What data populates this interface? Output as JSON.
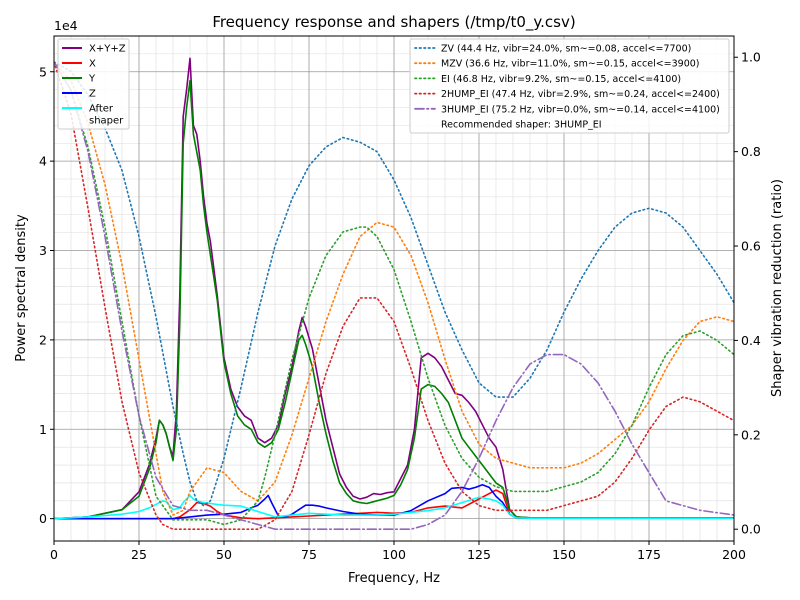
{
  "chart_data": {
    "type": "line",
    "title": "Frequency response and shapers (/tmp/t0_y.csv)",
    "xlabel": "Frequency, Hz",
    "ylabel": "Power spectral density",
    "y2label": "Shaper vibration reduction (ratio)",
    "y_offset_label": "1e4",
    "xlim": [
      0,
      200
    ],
    "ylim": [
      -2500,
      54000
    ],
    "y2lim": [
      -0.025,
      1.045
    ],
    "x_ticks": [
      0,
      25,
      50,
      75,
      100,
      125,
      150,
      175,
      200
    ],
    "y_ticks": [
      0,
      10000,
      20000,
      30000,
      40000,
      50000
    ],
    "y_tick_labels": [
      "0",
      "1",
      "2",
      "3",
      "4",
      "5"
    ],
    "y2_ticks": [
      0,
      0.2,
      0.4,
      0.6,
      0.8,
      1.0
    ],
    "y2_tick_labels": [
      "0.0",
      "0.2",
      "0.4",
      "0.6",
      "0.8",
      "1.0"
    ],
    "grid": true,
    "legend_left_position": "top-left",
    "legend_right_position": "top-right",
    "recommended_text": "Recommended shaper: 3HUMP_EI",
    "psd_series": [
      {
        "name": "X+Y+Z",
        "color": "#800080",
        "x": [
          0,
          10,
          20,
          25,
          28,
          30,
          31,
          32,
          33,
          34,
          35,
          36,
          37,
          38,
          39,
          40,
          41,
          42,
          43,
          44,
          45,
          46,
          47,
          48,
          50,
          52,
          54,
          56,
          58,
          60,
          62,
          64,
          66,
          68,
          70,
          72,
          73,
          74,
          76,
          78,
          80,
          82,
          84,
          86,
          88,
          90,
          92,
          94,
          96,
          98,
          100,
          102,
          104,
          106,
          108,
          110,
          112,
          114,
          116,
          118,
          120,
          122,
          124,
          126,
          128,
          130,
          132,
          134,
          136,
          140,
          150,
          160,
          170,
          180,
          190,
          200
        ],
        "y": [
          0,
          200,
          1000,
          3000,
          6000,
          9000,
          11000,
          10500,
          9500,
          8000,
          7000,
          12000,
          25000,
          45000,
          48000,
          51500,
          44000,
          43000,
          40000,
          36000,
          33000,
          31000,
          28000,
          25000,
          18000,
          14500,
          12500,
          11500,
          11000,
          9000,
          8500,
          9000,
          10500,
          14000,
          17000,
          21000,
          22500,
          21500,
          19000,
          15000,
          11000,
          8000,
          5000,
          3500,
          2500,
          2200,
          2400,
          2800,
          2700,
          2900,
          3000,
          4500,
          6000,
          10000,
          18000,
          18500,
          18000,
          17000,
          15500,
          14000,
          13800,
          13000,
          12000,
          10500,
          9000,
          8000,
          5500,
          1000,
          200,
          100,
          100,
          100,
          100,
          100,
          100,
          100
        ]
      },
      {
        "name": "X",
        "color": "#ff0000",
        "x": [
          0,
          30,
          35,
          37,
          40,
          42,
          44,
          46,
          48,
          50,
          55,
          60,
          65,
          70,
          75,
          80,
          85,
          90,
          95,
          100,
          105,
          110,
          115,
          120,
          125,
          128,
          130,
          132,
          134,
          136,
          140,
          150,
          160,
          170,
          180,
          190,
          200
        ],
        "y": [
          0,
          0,
          0,
          200,
          1000,
          1800,
          1700,
          1400,
          800,
          400,
          100,
          0,
          100,
          200,
          300,
          400,
          500,
          600,
          700,
          600,
          700,
          1200,
          1400,
          1200,
          2200,
          2800,
          3200,
          2800,
          500,
          100,
          50,
          50,
          50,
          50,
          50,
          50,
          50
        ]
      },
      {
        "name": "Y",
        "color": "#008000",
        "x": [
          0,
          10,
          20,
          25,
          28,
          30,
          31,
          32,
          33,
          34,
          35,
          36,
          37,
          38,
          39,
          40,
          41,
          42,
          43,
          44,
          45,
          46,
          47,
          48,
          50,
          52,
          54,
          56,
          58,
          60,
          62,
          64,
          66,
          68,
          70,
          72,
          73,
          74,
          76,
          78,
          80,
          82,
          84,
          86,
          88,
          90,
          92,
          94,
          96,
          98,
          100,
          102,
          104,
          106,
          108,
          110,
          112,
          114,
          116,
          118,
          120,
          122,
          124,
          126,
          128,
          130,
          132,
          134,
          136,
          140,
          150,
          160,
          170,
          180,
          190,
          200
        ],
        "y": [
          0,
          200,
          1000,
          2500,
          5500,
          8500,
          11000,
          10500,
          9500,
          8000,
          6500,
          10000,
          22000,
          42000,
          46000,
          49000,
          43000,
          41000,
          39000,
          35000,
          32000,
          29500,
          27000,
          24500,
          17500,
          14000,
          11500,
          10500,
          10000,
          8500,
          8000,
          8500,
          10000,
          13000,
          16500,
          20000,
          20500,
          19500,
          17000,
          13000,
          9500,
          6500,
          4000,
          2800,
          2000,
          1800,
          1700,
          1900,
          2100,
          2300,
          2600,
          3800,
          5500,
          9000,
          14500,
          15000,
          14800,
          14000,
          13000,
          11000,
          9000,
          8000,
          7000,
          6000,
          5000,
          4000,
          3500,
          1000,
          200,
          100,
          100,
          100,
          100,
          100,
          100,
          100
        ]
      },
      {
        "name": "Z",
        "color": "#0000ff",
        "x": [
          0,
          35,
          40,
          45,
          50,
          55,
          58,
          60,
          62,
          63,
          64,
          66,
          68,
          70,
          72,
          74,
          76,
          78,
          80,
          85,
          90,
          95,
          100,
          105,
          110,
          115,
          117,
          120,
          122,
          124,
          126,
          128,
          130,
          132,
          134,
          136,
          140,
          150,
          160,
          170,
          180,
          190,
          200
        ],
        "y": [
          0,
          0,
          200,
          400,
          500,
          700,
          1200,
          1500,
          2200,
          2600,
          1800,
          300,
          200,
          500,
          1000,
          1500,
          1500,
          1400,
          1200,
          800,
          500,
          400,
          400,
          900,
          2000,
          2800,
          3400,
          3500,
          3300,
          3500,
          3800,
          3500,
          2500,
          1800,
          500,
          100,
          50,
          50,
          50,
          50,
          50,
          50,
          50
        ]
      },
      {
        "name": "After\nshaper",
        "color": "#00ffff",
        "x": [
          0,
          10,
          20,
          25,
          28,
          30,
          32,
          33,
          35,
          37,
          38,
          40,
          41,
          42,
          44,
          46,
          48,
          50,
          55,
          60,
          65,
          70,
          75,
          80,
          85,
          90,
          95,
          100,
          105,
          110,
          115,
          120,
          125,
          128,
          130,
          132,
          134,
          136,
          140,
          150,
          160,
          170,
          180,
          190,
          200
        ],
        "y": [
          0,
          200,
          500,
          800,
          1200,
          1600,
          2000,
          1900,
          1000,
          1200,
          1800,
          2600,
          2200,
          2000,
          1800,
          1700,
          1600,
          1500,
          1400,
          800,
          200,
          400,
          600,
          500,
          400,
          400,
          400,
          500,
          700,
          900,
          1200,
          1800,
          2400,
          2200,
          2000,
          1500,
          500,
          100,
          50,
          50,
          50,
          50,
          50,
          50,
          50
        ]
      }
    ],
    "shaper_series": [
      {
        "name": "ZV (44.4 Hz, vibr=24.0%, sm~=0.08, accel<=7700)",
        "color": "#1f77b4",
        "style": "dotted",
        "x": [
          0,
          5,
          10,
          15,
          20,
          25,
          30,
          35,
          38,
          40,
          42,
          44,
          46,
          50,
          55,
          60,
          65,
          70,
          75,
          80,
          85,
          90,
          95,
          100,
          105,
          110,
          115,
          120,
          125,
          130,
          135,
          140,
          145,
          150,
          155,
          160,
          165,
          170,
          175,
          180,
          185,
          190,
          195,
          200
        ],
        "y": [
          0.99,
          0.97,
          0.92,
          0.85,
          0.76,
          0.62,
          0.45,
          0.26,
          0.16,
          0.1,
          0.06,
          0.05,
          0.06,
          0.15,
          0.3,
          0.46,
          0.6,
          0.7,
          0.77,
          0.81,
          0.83,
          0.82,
          0.8,
          0.74,
          0.66,
          0.56,
          0.46,
          0.38,
          0.31,
          0.28,
          0.28,
          0.32,
          0.38,
          0.46,
          0.53,
          0.59,
          0.64,
          0.67,
          0.68,
          0.67,
          0.64,
          0.59,
          0.54,
          0.48
        ]
      },
      {
        "name": "MZV (36.6 Hz, vibr=11.0%, sm~=0.15, accel<=3900)",
        "color": "#ff7f0e",
        "style": "dotted",
        "x": [
          0,
          5,
          10,
          15,
          20,
          25,
          30,
          32,
          35,
          38,
          40,
          45,
          50,
          55,
          60,
          65,
          70,
          75,
          80,
          85,
          90,
          95,
          100,
          105,
          110,
          115,
          120,
          125,
          130,
          135,
          140,
          145,
          150,
          155,
          160,
          165,
          170,
          175,
          180,
          185,
          190,
          195,
          200
        ],
        "y": [
          0.99,
          0.95,
          0.86,
          0.73,
          0.56,
          0.36,
          0.16,
          0.08,
          0.03,
          0.04,
          0.08,
          0.13,
          0.12,
          0.08,
          0.06,
          0.1,
          0.2,
          0.32,
          0.44,
          0.54,
          0.62,
          0.65,
          0.64,
          0.58,
          0.48,
          0.36,
          0.25,
          0.18,
          0.15,
          0.14,
          0.13,
          0.13,
          0.13,
          0.14,
          0.16,
          0.19,
          0.22,
          0.27,
          0.34,
          0.4,
          0.44,
          0.45,
          0.44
        ]
      },
      {
        "name": "EI (46.8 Hz, vibr=9.2%, sm~=0.15, accel<=4100)",
        "color": "#2ca02c",
        "style": "dotted",
        "x": [
          0,
          5,
          10,
          15,
          20,
          25,
          30,
          35,
          40,
          45,
          50,
          55,
          60,
          62,
          65,
          70,
          75,
          80,
          85,
          90,
          92,
          95,
          100,
          105,
          110,
          115,
          120,
          125,
          130,
          135,
          140,
          145,
          150,
          155,
          160,
          165,
          170,
          175,
          180,
          185,
          190,
          195,
          200
        ],
        "y": [
          0.99,
          0.93,
          0.81,
          0.64,
          0.44,
          0.24,
          0.07,
          0.02,
          0.02,
          0.02,
          0.01,
          0.02,
          0.06,
          0.11,
          0.2,
          0.36,
          0.49,
          0.58,
          0.63,
          0.64,
          0.64,
          0.62,
          0.55,
          0.44,
          0.32,
          0.22,
          0.15,
          0.11,
          0.09,
          0.08,
          0.08,
          0.08,
          0.09,
          0.1,
          0.12,
          0.16,
          0.22,
          0.3,
          0.37,
          0.41,
          0.42,
          0.4,
          0.37
        ]
      },
      {
        "name": "2HUMP_EI (47.4 Hz, vibr=2.9%, sm~=0.24, accel<=2400)",
        "color": "#d62728",
        "style": "dotted",
        "x": [
          0,
          5,
          10,
          15,
          20,
          25,
          30,
          32,
          35,
          38,
          40,
          45,
          50,
          55,
          60,
          65,
          70,
          75,
          80,
          85,
          90,
          95,
          100,
          105,
          110,
          115,
          120,
          125,
          130,
          135,
          140,
          145,
          150,
          155,
          160,
          165,
          170,
          175,
          180,
          185,
          190,
          195,
          200
        ],
        "y": [
          0.99,
          0.88,
          0.68,
          0.47,
          0.27,
          0.12,
          0.03,
          0.01,
          0.0,
          0.0,
          0.0,
          0.0,
          0.0,
          0.0,
          0.0,
          0.02,
          0.08,
          0.2,
          0.33,
          0.43,
          0.49,
          0.49,
          0.44,
          0.34,
          0.23,
          0.14,
          0.08,
          0.05,
          0.04,
          0.04,
          0.04,
          0.04,
          0.05,
          0.06,
          0.07,
          0.1,
          0.15,
          0.21,
          0.26,
          0.28,
          0.27,
          0.25,
          0.23
        ]
      },
      {
        "name": "3HUMP_EI (75.2 Hz, vibr=0.0%, sm~=0.14, accel<=4100)",
        "color": "#9467bd",
        "style": "dashdot",
        "x": [
          0,
          5,
          10,
          15,
          20,
          25,
          30,
          35,
          40,
          45,
          50,
          55,
          60,
          65,
          70,
          75,
          80,
          85,
          90,
          95,
          100,
          105,
          110,
          115,
          120,
          125,
          130,
          135,
          140,
          145,
          150,
          155,
          160,
          165,
          170,
          175,
          180,
          185,
          190,
          195,
          200
        ],
        "y": [
          0.99,
          0.93,
          0.8,
          0.62,
          0.42,
          0.24,
          0.11,
          0.05,
          0.04,
          0.04,
          0.03,
          0.02,
          0.01,
          0.0,
          0.0,
          0.0,
          0.0,
          0.0,
          0.0,
          0.0,
          0.0,
          0.0,
          0.01,
          0.03,
          0.08,
          0.15,
          0.23,
          0.3,
          0.35,
          0.37,
          0.37,
          0.35,
          0.31,
          0.25,
          0.18,
          0.12,
          0.06,
          0.05,
          0.04,
          0.035,
          0.03
        ]
      }
    ]
  }
}
